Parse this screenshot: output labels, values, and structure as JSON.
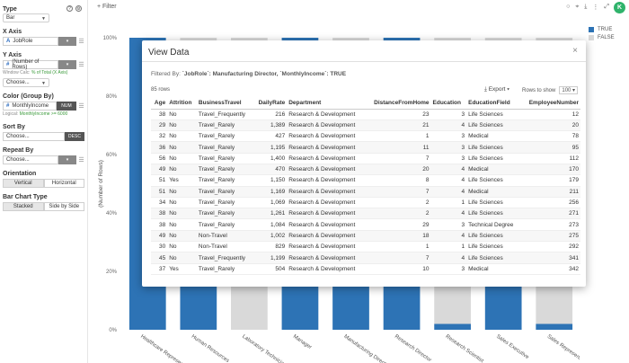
{
  "left_panel": {
    "type_label": "Type",
    "type_value": "Bar",
    "x_axis_label": "X Axis",
    "x_axis_field": "JobRole",
    "x_axis_type_icon": "A",
    "y_axis_label": "Y Axis",
    "y_axis_field": "(Number of Rows)",
    "window_calc_prefix": "Window Calc:",
    "window_calc_value": "% of Total (X Axis)",
    "choose_placeholder": "Choose...",
    "color_label": "Color (Group By)",
    "color_field": "MonthlyIncome",
    "color_field_icon": "#",
    "color_type": "NUM",
    "logical_prefix": "Logical:",
    "logical_value": "MonthlyIncome >= 6000",
    "sort_label": "Sort By",
    "sort_choose": "Choose...",
    "sort_order": "DESC",
    "repeat_label": "Repeat By",
    "repeat_choose": "Choose...",
    "orientation_label": "Orientation",
    "orientation_options": [
      "Vertical",
      "Horizontal"
    ],
    "bar_chart_type_label": "Bar Chart Type",
    "bar_chart_type_options": [
      "Stacked",
      "Side by Side"
    ]
  },
  "topbar": {
    "filter_label": "+ Filter",
    "avatar_letter": "K"
  },
  "colors": {
    "true_color": "#2d73b5",
    "false_color": "#d9d9d9",
    "avatar": "#2fb36b"
  },
  "legend": [
    "TRUE",
    "FALSE"
  ],
  "chart_data": {
    "type": "bar",
    "stacked": true,
    "categories": [
      "Healthcare Representative",
      "Human Resources",
      "Laboratory Technician",
      "Manager",
      "Manufacturing Director",
      "Research Director",
      "Research Scientist",
      "Sales Executive",
      "Sales Representative"
    ],
    "series": [
      {
        "name": "TRUE",
        "values": [
          100,
          33,
          0,
          100,
          66,
          100,
          2,
          54,
          2
        ]
      },
      {
        "name": "FALSE",
        "values": [
          0,
          67,
          100,
          0,
          34,
          0,
          98,
          46,
          98
        ]
      }
    ],
    "ylabel": "(Number of Rows)",
    "ytick_labels": [
      "0%",
      "20%",
      "40%",
      "60%",
      "80%",
      "100%"
    ],
    "ylim": [
      0,
      100
    ]
  },
  "modal": {
    "title": "View Data",
    "close_glyph": "×",
    "filtered_prefix": "Filtered By:",
    "filtered_text": "`JobRole`: Manufacturing Director, `MonthlyIncome`: TRUE",
    "rows_count": "85 rows",
    "export_label": "Export ▾",
    "rows_to_show_label": "Rows to show",
    "rows_to_show_value": "100 ▾",
    "columns": [
      "Age",
      "Attrition",
      "BusinessTravel",
      "DailyRate",
      "Department",
      "DistanceFromHome",
      "Education",
      "EducationField",
      "EmployeeNumber"
    ],
    "rows": [
      [
        "38",
        "No",
        "Travel_Frequently",
        "216",
        "Research & Development",
        "23",
        "3",
        "Life Sciences",
        "12"
      ],
      [
        "29",
        "No",
        "Travel_Rarely",
        "1,389",
        "Research & Development",
        "21",
        "4",
        "Life Sciences",
        "20"
      ],
      [
        "32",
        "No",
        "Travel_Rarely",
        "427",
        "Research & Development",
        "1",
        "3",
        "Medical",
        "78"
      ],
      [
        "36",
        "No",
        "Travel_Rarely",
        "1,195",
        "Research & Development",
        "11",
        "3",
        "Life Sciences",
        "95"
      ],
      [
        "56",
        "No",
        "Travel_Rarely",
        "1,400",
        "Research & Development",
        "7",
        "3",
        "Life Sciences",
        "112"
      ],
      [
        "49",
        "No",
        "Travel_Rarely",
        "470",
        "Research & Development",
        "20",
        "4",
        "Medical",
        "170"
      ],
      [
        "51",
        "Yes",
        "Travel_Rarely",
        "1,150",
        "Research & Development",
        "8",
        "4",
        "Life Sciences",
        "179"
      ],
      [
        "51",
        "No",
        "Travel_Rarely",
        "1,169",
        "Research & Development",
        "7",
        "4",
        "Medical",
        "211"
      ],
      [
        "34",
        "No",
        "Travel_Rarely",
        "1,069",
        "Research & Development",
        "2",
        "1",
        "Life Sciences",
        "256"
      ],
      [
        "38",
        "No",
        "Travel_Rarely",
        "1,261",
        "Research & Development",
        "2",
        "4",
        "Life Sciences",
        "271"
      ],
      [
        "38",
        "No",
        "Travel_Rarely",
        "1,084",
        "Research & Development",
        "29",
        "3",
        "Technical Degree",
        "273"
      ],
      [
        "49",
        "No",
        "Non-Travel",
        "1,002",
        "Research & Development",
        "18",
        "4",
        "Life Sciences",
        "275"
      ],
      [
        "30",
        "No",
        "Non-Travel",
        "829",
        "Research & Development",
        "1",
        "1",
        "Life Sciences",
        "292"
      ],
      [
        "45",
        "No",
        "Travel_Frequently",
        "1,199",
        "Research & Development",
        "7",
        "4",
        "Life Sciences",
        "341"
      ],
      [
        "37",
        "Yes",
        "Travel_Rarely",
        "504",
        "Research & Development",
        "10",
        "3",
        "Medical",
        "342"
      ]
    ]
  }
}
